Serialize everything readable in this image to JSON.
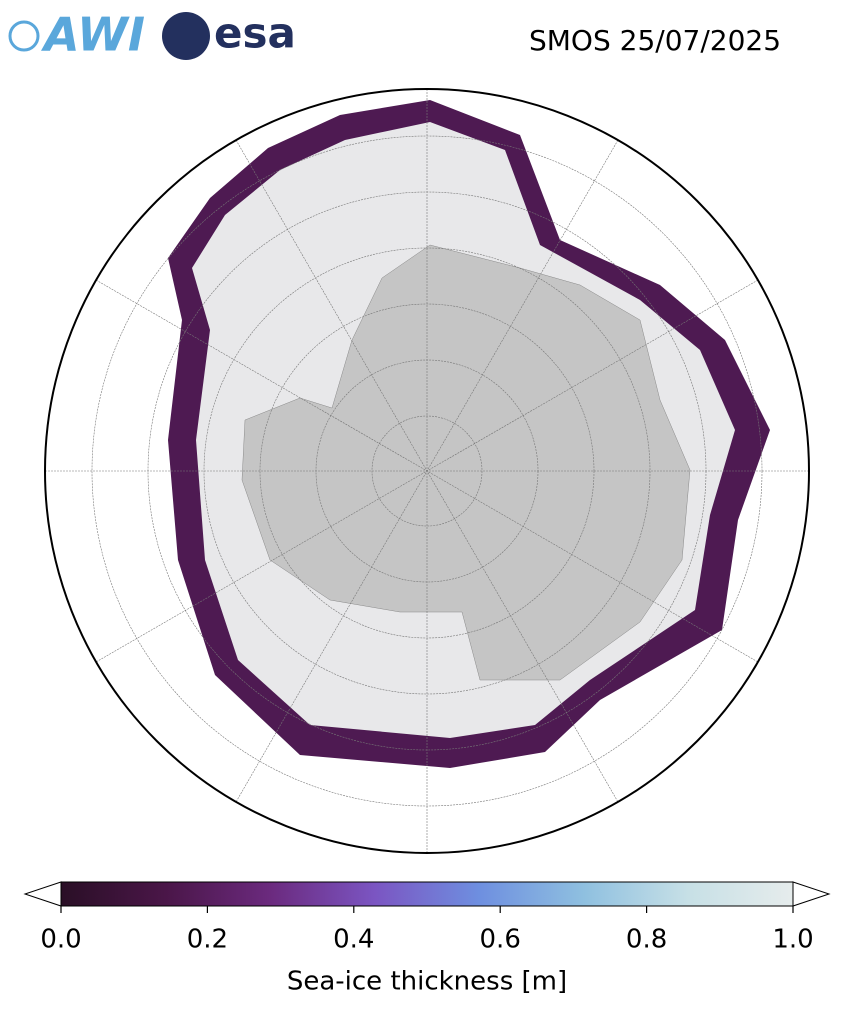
{
  "header": {
    "logos": [
      "AWI",
      "esa"
    ],
    "title": "SMOS 25/07/2025"
  },
  "colorbar": {
    "label": "Sea-ice thickness [m]",
    "lim": [
      0,
      1
    ],
    "ticks": [
      {
        "value": 0,
        "label": "0.0"
      },
      0.2,
      0.4,
      0.6,
      0.8,
      {
        "value": 1,
        "label": "1.0"
      }
    ],
    "colormap": [
      "#2a0f26",
      "#4a1648",
      "#6b2a7e",
      "#7b55c2",
      "#6e8fe0",
      "#8fc0e0",
      "#c7e0e6",
      "#e6ecec"
    ],
    "extend": "both"
  }
}
